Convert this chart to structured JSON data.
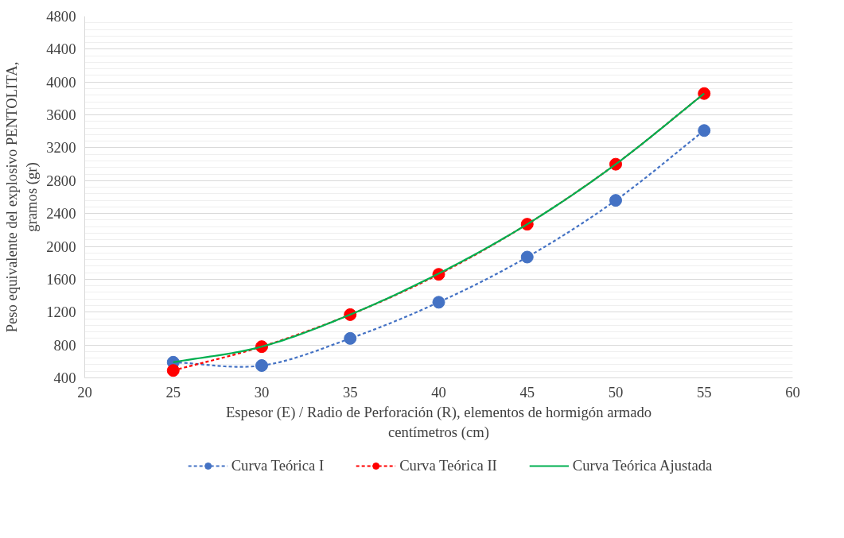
{
  "chart_data": {
    "type": "line",
    "xlabel": "Espesor (E) / Radio de Perforación (R), elementos de hormigón armado\ncentímetros (cm)",
    "ylabel": "Peso equivalente del explosivo PENTOLITA,\ngramos (gr)",
    "x": [
      25,
      30,
      35,
      40,
      45,
      50,
      55
    ],
    "series": [
      {
        "name": "Curva Teórica I",
        "color": "#4472c4",
        "values": [
          590,
          550,
          880,
          1320,
          1870,
          2560,
          3410
        ],
        "marker": "circle",
        "line_style": "dashed"
      },
      {
        "name": "Curva Teórica II",
        "color": "#ff0000",
        "values": [
          490,
          780,
          1170,
          1660,
          2270,
          3000,
          3860
        ],
        "marker": "circle",
        "line_style": "dashed"
      },
      {
        "name": "Curva Teórica Ajustada",
        "color": "#00b050",
        "values": [
          590,
          780,
          1170,
          1670,
          2270,
          3000,
          3860
        ],
        "marker": "none",
        "line_style": "solid"
      }
    ],
    "xlim": [
      20,
      60
    ],
    "xticks": [
      20,
      25,
      30,
      35,
      40,
      45,
      50,
      55,
      60
    ],
    "ylim": [
      400,
      4800
    ],
    "yticks": [
      400,
      800,
      1200,
      1600,
      2000,
      2400,
      2800,
      3200,
      3600,
      4000,
      4400,
      4800
    ],
    "grid": true,
    "legend": "bottom"
  }
}
